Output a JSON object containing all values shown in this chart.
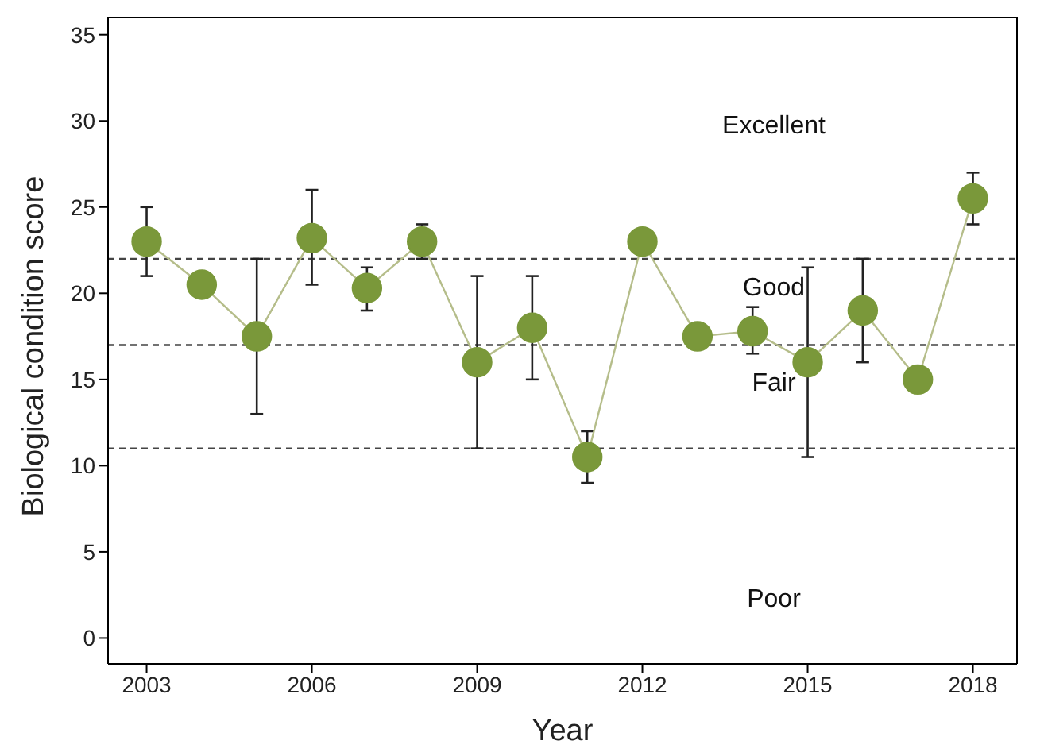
{
  "chart_data": {
    "type": "line",
    "xlabel": "Year",
    "ylabel": "Biological condition score",
    "x": [
      2003,
      2004,
      2005,
      2006,
      2007,
      2008,
      2009,
      2010,
      2011,
      2012,
      2013,
      2014,
      2015,
      2016,
      2017,
      2018
    ],
    "series": [
      {
        "color": "#7a983a",
        "values": [
          23,
          20.5,
          17.5,
          23.2,
          20.3,
          23,
          16,
          18,
          10.5,
          23,
          17.5,
          17.8,
          16,
          19,
          15,
          25.5
        ],
        "errors": [
          [
            21,
            25
          ],
          null,
          [
            13,
            22
          ],
          [
            20.5,
            26
          ],
          [
            19,
            21.5
          ],
          [
            22,
            24
          ],
          [
            11,
            21
          ],
          [
            15,
            21
          ],
          [
            9,
            12
          ],
          null,
          null,
          [
            16.5,
            19.2
          ],
          [
            10.5,
            21.5
          ],
          [
            16,
            22
          ],
          null,
          [
            24,
            27
          ]
        ]
      }
    ],
    "xlim": [
      2002.3,
      2018.8
    ],
    "xticks": [
      2003,
      2006,
      2009,
      2012,
      2015,
      2018
    ],
    "ylim": [
      -1.5,
      36
    ],
    "yticks": [
      0,
      5,
      10,
      15,
      20,
      25,
      30,
      35
    ],
    "ref_lines": [
      {
        "axis": "y",
        "value": 22,
        "line_style": "dashed",
        "color": "#444444"
      },
      {
        "axis": "y",
        "value": 17,
        "line_style": "dashed",
        "color": "#444444"
      },
      {
        "axis": "y",
        "value": 11,
        "line_style": "dashed",
        "color": "#444444"
      }
    ],
    "annotations": [
      "Excellent",
      "Good",
      "Fair",
      "Poor"
    ],
    "marker": "circle",
    "grid": false,
    "legend": false
  }
}
